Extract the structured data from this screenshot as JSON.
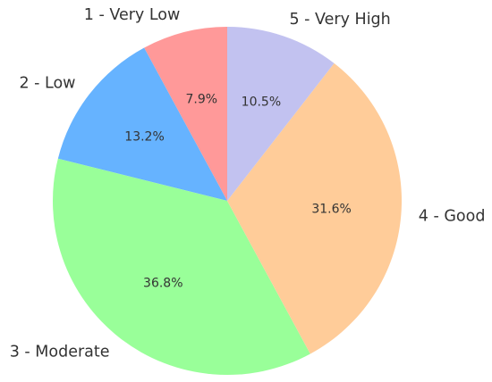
{
  "chart_data": {
    "type": "pie",
    "title": "",
    "start_angle_deg": 90,
    "direction": "counterclockwise",
    "slices": [
      {
        "label": "1 - Very Low",
        "value": 7.9,
        "pct_label": "7.9%",
        "color": "#ff9999"
      },
      {
        "label": "2 - Low",
        "value": 13.2,
        "pct_label": "13.2%",
        "color": "#66b3ff"
      },
      {
        "label": "3 - Moderate",
        "value": 36.8,
        "pct_label": "36.8%",
        "color": "#99ff99"
      },
      {
        "label": "4 - Good",
        "value": 31.6,
        "pct_label": "31.6%",
        "color": "#ffcc99"
      },
      {
        "label": "5 - Very High",
        "value": 10.5,
        "pct_label": "10.5%",
        "color": "#c2c2f0"
      }
    ]
  }
}
